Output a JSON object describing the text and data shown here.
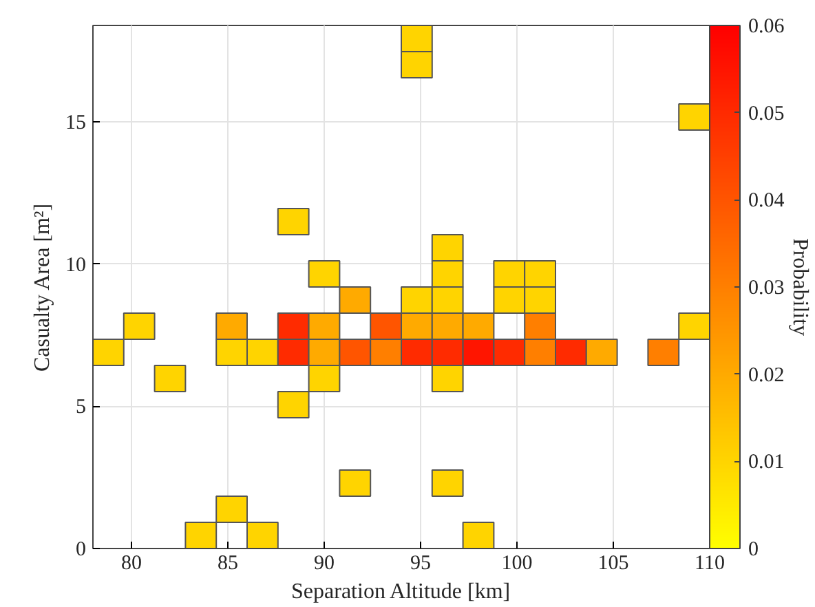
{
  "chart_data": {
    "type": "scatter",
    "marker": "square",
    "xlabel": "Separation Altitude [km]",
    "ylabel": "Casualty Area [m²]",
    "clabel": "Probability",
    "x": [
      94.8,
      94.8,
      109.2,
      88.4,
      96.4,
      90,
      96.4,
      99.6,
      101.2,
      91.6,
      94.8,
      96.4,
      99.6,
      101.2,
      80.4,
      85.2,
      88.4,
      90,
      93.2,
      94.8,
      96.4,
      98,
      101.2,
      109.2,
      78.8,
      85.2,
      86.8,
      88.4,
      90,
      91.6,
      93.2,
      94.8,
      96.4,
      98,
      99.6,
      101.2,
      102.8,
      104.4,
      107.6,
      82,
      90,
      96.4,
      88.4,
      91.6,
      96.4,
      85.2,
      83.6,
      86.8,
      98
    ],
    "values": [
      17.94,
      17.02,
      15.18,
      11.5,
      10.58,
      9.66,
      9.66,
      9.66,
      9.66,
      8.74,
      8.74,
      8.74,
      8.74,
      8.74,
      7.82,
      7.82,
      7.82,
      7.82,
      7.82,
      7.82,
      7.82,
      7.82,
      7.82,
      7.82,
      6.9,
      6.9,
      6.9,
      6.9,
      6.9,
      6.9,
      6.9,
      6.9,
      6.9,
      6.9,
      6.9,
      6.9,
      6.9,
      6.9,
      6.9,
      5.98,
      5.98,
      5.98,
      5.06,
      2.3,
      2.3,
      1.38,
      0.46,
      0.46,
      0.46
    ],
    "cvalues": [
      0.01,
      0.01,
      0.01,
      0.01,
      0.01,
      0.01,
      0.01,
      0.01,
      0.01,
      0.02,
      0.01,
      0.01,
      0.01,
      0.01,
      0.01,
      0.02,
      0.05,
      0.02,
      0.04,
      0.02,
      0.02,
      0.02,
      0.03,
      0.01,
      0.01,
      0.01,
      0.01,
      0.05,
      0.02,
      0.04,
      0.03,
      0.05,
      0.05,
      0.055,
      0.05,
      0.03,
      0.05,
      0.02,
      0.03,
      0.01,
      0.01,
      0.01,
      0.01,
      0.01,
      0.01,
      0.01,
      0.01,
      0.01,
      0.01
    ],
    "xlim": [
      78,
      110
    ],
    "ylim": [
      0,
      18.4
    ],
    "xticks": [
      80,
      85,
      90,
      95,
      100,
      105,
      110
    ],
    "yticks": [
      0,
      5,
      10,
      15
    ],
    "clim": [
      0,
      0.06
    ],
    "cticks": [
      0,
      0.01,
      0.02,
      0.03,
      0.04,
      0.05,
      0.06
    ],
    "grid": true
  }
}
